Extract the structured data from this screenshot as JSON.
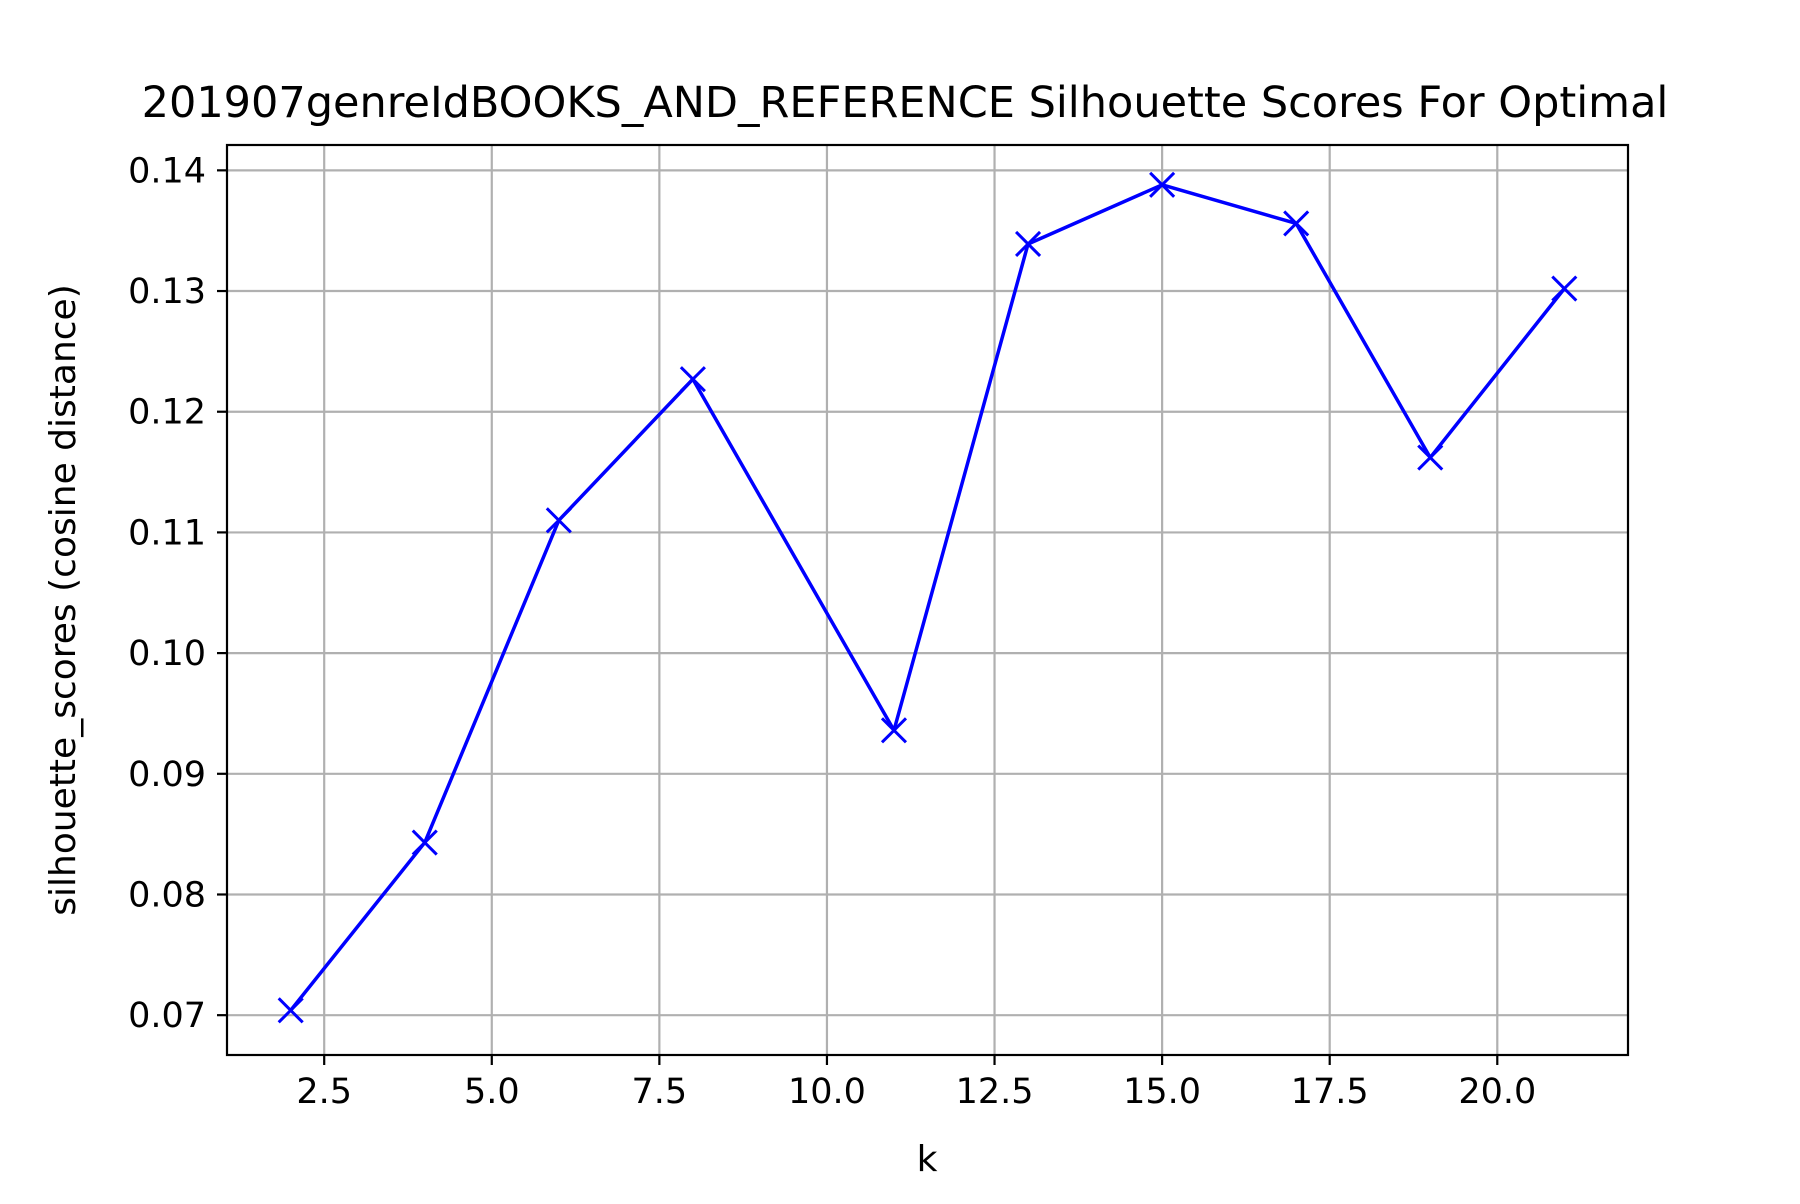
{
  "chart_data": {
    "type": "line",
    "title": "201907genreIdBOOKS_AND_REFERENCE Silhouette Scores For Optimal",
    "xlabel": "k",
    "ylabel": "silhouette_scores (cosine distance)",
    "xlim": [
      1.05,
      21.95
    ],
    "ylim": [
      0.0667,
      0.1421
    ],
    "x_ticks": [
      2.5,
      5.0,
      7.5,
      10.0,
      12.5,
      15.0,
      17.5,
      20.0
    ],
    "x_tick_labels": [
      "2.5",
      "5.0",
      "7.5",
      "10.0",
      "12.5",
      "15.0",
      "17.5",
      "20.0"
    ],
    "y_ticks": [
      0.07,
      0.08,
      0.09,
      0.1,
      0.11,
      0.12,
      0.13,
      0.14
    ],
    "y_tick_labels": [
      "0.07",
      "0.08",
      "0.09",
      "0.10",
      "0.11",
      "0.12",
      "0.13",
      "0.14"
    ],
    "grid": true,
    "marker": "x",
    "line_color": "#0000ff",
    "series": [
      {
        "x": [
          2,
          4,
          6,
          8,
          11,
          13,
          15,
          17,
          19,
          21
        ],
        "values": [
          0.0704,
          0.0843,
          0.111,
          0.1227,
          0.0936,
          0.1339,
          0.1388,
          0.1356,
          0.1162,
          0.1302
        ]
      }
    ]
  }
}
